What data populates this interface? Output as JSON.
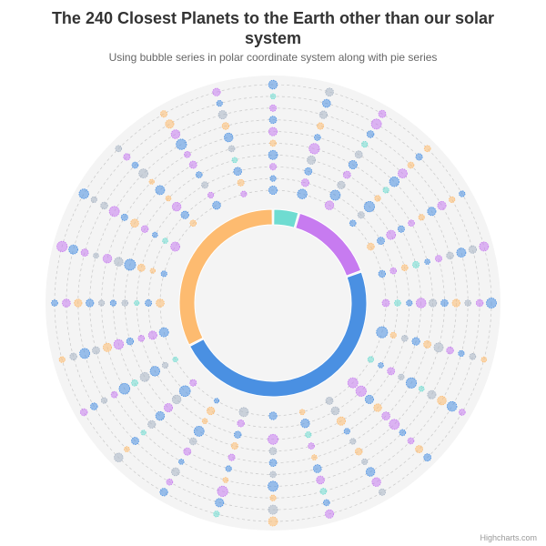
{
  "header": {
    "title": "The 240 Closest Planets to the Earth other than our solar system",
    "subtitle": "Using bubble series in polar coordinate system along with pie series"
  },
  "credits": "Highcharts.com",
  "chart_data": {
    "type": "polar-bubble-with-pie",
    "title": "The 240 Closest Planets to the Earth other than our solar system",
    "subtitle": "Using bubble series in polar coordinate system along with pie series",
    "pane_background": "#f4f4f4",
    "grid": true,
    "angular_categories": 24,
    "rings": 10,
    "palette": [
      "#4a90e2",
      "#c77bf0",
      "#fdbb70",
      "#6fdcd1",
      "#a8b4c4"
    ],
    "pie": {
      "name": "",
      "slices": [
        {
          "value": 4.5,
          "color": "#6fdcd1"
        },
        {
          "value": 15.0,
          "color": "#c77bf0"
        },
        {
          "value": 48.0,
          "color": "#4a90e2"
        },
        {
          "value": 32.5,
          "color": "#fdbb70"
        }
      ]
    },
    "bubble_series": [
      {
        "color": "#4a90e2",
        "points": [
          [
            0,
            0,
            2.2
          ],
          [
            1,
            0,
            2.5
          ],
          [
            3,
            0,
            1.6
          ],
          [
            5,
            0,
            1.8
          ],
          [
            7,
            0,
            2.9
          ],
          [
            12,
            0,
            2.0
          ],
          [
            14,
            0,
            1.3
          ],
          [
            17,
            0,
            2.4
          ],
          [
            19,
            0,
            1.5
          ],
          [
            22,
            0,
            2.1
          ],
          [
            0,
            1,
            1.5
          ],
          [
            2,
            1,
            2.6
          ],
          [
            4,
            1,
            1.9
          ],
          [
            8,
            1,
            1.4
          ],
          [
            11,
            1,
            2.3
          ],
          [
            15,
            1,
            2.8
          ],
          [
            18,
            1,
            1.7
          ],
          [
            21,
            1,
            2.0
          ],
          [
            1,
            2,
            1.9
          ],
          [
            3,
            2,
            2.7
          ],
          [
            6,
            2,
            1.5
          ],
          [
            9,
            2,
            2.2
          ],
          [
            13,
            2,
            1.8
          ],
          [
            16,
            2,
            2.5
          ],
          [
            20,
            2,
            1.4
          ],
          [
            23,
            2,
            2.1
          ],
          [
            0,
            3,
            2.4
          ],
          [
            4,
            3,
            1.7
          ],
          [
            7,
            3,
            2.0
          ],
          [
            10,
            3,
            1.5
          ],
          [
            14,
            3,
            2.6
          ],
          [
            17,
            3,
            1.8
          ],
          [
            19,
            3,
            2.9
          ],
          [
            22,
            3,
            1.6
          ],
          [
            2,
            4,
            2.2
          ],
          [
            5,
            4,
            1.4
          ],
          [
            8,
            4,
            2.7
          ],
          [
            12,
            4,
            1.9
          ],
          [
            15,
            4,
            2.3
          ],
          [
            18,
            4,
            1.5
          ],
          [
            21,
            4,
            2.4
          ],
          [
            1,
            5,
            1.6
          ],
          [
            3,
            5,
            2.5
          ],
          [
            6,
            5,
            1.8
          ],
          [
            11,
            5,
            2.1
          ],
          [
            13,
            5,
            1.5
          ],
          [
            16,
            5,
            2.8
          ],
          [
            20,
            5,
            1.7
          ],
          [
            23,
            5,
            2.3
          ],
          [
            0,
            6,
            1.9
          ],
          [
            4,
            6,
            2.2
          ],
          [
            9,
            6,
            1.6
          ],
          [
            12,
            6,
            2.6
          ],
          [
            14,
            6,
            1.4
          ],
          [
            18,
            6,
            2.0
          ],
          [
            22,
            6,
            2.7
          ],
          [
            2,
            7,
            1.8
          ],
          [
            5,
            7,
            2.4
          ],
          [
            7,
            7,
            1.5
          ],
          [
            10,
            7,
            2.3
          ],
          [
            15,
            7,
            1.9
          ],
          [
            17,
            7,
            2.6
          ],
          [
            21,
            7,
            1.6
          ],
          [
            1,
            8,
            2.1
          ],
          [
            3,
            8,
            1.7
          ],
          [
            8,
            8,
            2.5
          ],
          [
            11,
            8,
            1.6
          ],
          [
            13,
            8,
            2.2
          ],
          [
            16,
            8,
            1.8
          ],
          [
            19,
            8,
            2.4
          ],
          [
            23,
            8,
            1.5
          ],
          [
            0,
            9,
            2.3
          ],
          [
            4,
            9,
            1.5
          ],
          [
            6,
            9,
            2.6
          ],
          [
            9,
            9,
            1.9
          ],
          [
            14,
            9,
            2.0
          ],
          [
            18,
            9,
            1.6
          ],
          [
            20,
            9,
            2.5
          ]
        ]
      },
      {
        "color": "#c77bf0",
        "points": [
          [
            2,
            0,
            2.3
          ],
          [
            6,
            0,
            1.9
          ],
          [
            9,
            0,
            2.6
          ],
          [
            15,
            0,
            1.7
          ],
          [
            20,
            0,
            2.4
          ],
          [
            23,
            0,
            1.5
          ],
          [
            1,
            1,
            2.0
          ],
          [
            5,
            1,
            1.6
          ],
          [
            9,
            1,
            2.7
          ],
          [
            13,
            1,
            1.8
          ],
          [
            17,
            1,
            2.2
          ],
          [
            22,
            1,
            1.5
          ],
          [
            0,
            2,
            1.7
          ],
          [
            4,
            2,
            2.4
          ],
          [
            8,
            2,
            1.9
          ],
          [
            12,
            2,
            2.6
          ],
          [
            17,
            2,
            1.6
          ],
          [
            21,
            2,
            2.3
          ],
          [
            2,
            3,
            1.9
          ],
          [
            6,
            3,
            2.5
          ],
          [
            11,
            3,
            1.6
          ],
          [
            15,
            3,
            2.2
          ],
          [
            20,
            3,
            1.8
          ],
          [
            1,
            4,
            2.7
          ],
          [
            4,
            4,
            1.6
          ],
          [
            9,
            4,
            2.1
          ],
          [
            13,
            4,
            1.7
          ],
          [
            17,
            4,
            2.5
          ],
          [
            22,
            4,
            1.9
          ],
          [
            0,
            5,
            2.2
          ],
          [
            5,
            5,
            1.7
          ],
          [
            9,
            5,
            2.6
          ],
          [
            14,
            5,
            1.9
          ],
          [
            19,
            5,
            2.3
          ],
          [
            22,
            5,
            1.6
          ],
          [
            3,
            6,
            2.4
          ],
          [
            7,
            6,
            1.8
          ],
          [
            11,
            6,
            2.1
          ],
          [
            16,
            6,
            1.6
          ],
          [
            20,
            6,
            2.6
          ],
          [
            0,
            7,
            1.7
          ],
          [
            4,
            7,
            2.2
          ],
          [
            9,
            7,
            1.6
          ],
          [
            13,
            7,
            2.7
          ],
          [
            19,
            7,
            1.9
          ],
          [
            22,
            7,
            2.3
          ],
          [
            2,
            8,
            2.6
          ],
          [
            6,
            8,
            1.8
          ],
          [
            10,
            8,
            2.3
          ],
          [
            14,
            8,
            1.6
          ],
          [
            18,
            8,
            2.1
          ],
          [
            21,
            8,
            1.7
          ],
          [
            2,
            9,
            1.9
          ],
          [
            5,
            9,
            2.4
          ],
          [
            8,
            9,
            1.6
          ],
          [
            11,
            9,
            2.2
          ],
          [
            16,
            9,
            1.8
          ],
          [
            19,
            9,
            2.7
          ],
          [
            23,
            9,
            2.0
          ]
        ]
      },
      {
        "color": "#fdbb70",
        "points": [
          [
            4,
            0,
            1.8
          ],
          [
            11,
            0,
            1.4
          ],
          [
            18,
            0,
            2.1
          ],
          [
            21,
            0,
            1.6
          ],
          [
            7,
            1,
            1.5
          ],
          [
            14,
            1,
            2.0
          ],
          [
            19,
            1,
            1.3
          ],
          [
            23,
            1,
            1.7
          ],
          [
            5,
            2,
            1.6
          ],
          [
            10,
            2,
            2.2
          ],
          [
            14,
            2,
            1.4
          ],
          [
            19,
            2,
            1.9
          ],
          [
            3,
            3,
            1.5
          ],
          [
            9,
            3,
            2.0
          ],
          [
            13,
            3,
            1.7
          ],
          [
            21,
            3,
            1.4
          ],
          [
            0,
            4,
            1.6
          ],
          [
            7,
            4,
            1.9
          ],
          [
            11,
            4,
            1.4
          ],
          [
            20,
            4,
            2.1
          ],
          [
            4,
            5,
            1.5
          ],
          [
            10,
            5,
            1.8
          ],
          [
            17,
            5,
            2.2
          ],
          [
            21,
            5,
            1.3
          ],
          [
            1,
            6,
            1.7
          ],
          [
            6,
            6,
            2.0
          ],
          [
            13,
            6,
            1.4
          ],
          [
            23,
            6,
            1.8
          ],
          [
            3,
            7,
            1.6
          ],
          [
            8,
            7,
            2.3
          ],
          [
            12,
            7,
            1.5
          ],
          [
            18,
            7,
            2.0
          ],
          [
            4,
            8,
            1.5
          ],
          [
            9,
            8,
            1.9
          ],
          [
            15,
            8,
            1.4
          ],
          [
            22,
            8,
            2.2
          ],
          [
            3,
            9,
            1.6
          ],
          [
            7,
            9,
            1.4
          ],
          [
            12,
            9,
            2.4
          ],
          [
            17,
            9,
            1.5
          ],
          [
            22,
            9,
            1.7
          ]
        ]
      },
      {
        "color": "#6fdcd1",
        "points": [
          [
            8,
            0,
            1.5
          ],
          [
            16,
            0,
            1.3
          ],
          [
            6,
            1,
            1.6
          ],
          [
            20,
            1,
            1.4
          ],
          [
            11,
            2,
            1.5
          ],
          [
            18,
            2,
            1.3
          ],
          [
            5,
            3,
            1.7
          ],
          [
            23,
            3,
            1.4
          ],
          [
            3,
            4,
            1.5
          ],
          [
            16,
            4,
            1.6
          ],
          [
            8,
            5,
            1.4
          ],
          [
            2,
            6,
            1.5
          ],
          [
            15,
            6,
            1.3
          ],
          [
            11,
            7,
            1.6
          ],
          [
            0,
            8,
            1.4
          ],
          [
            13,
            9,
            1.5
          ]
        ]
      },
      {
        "color": "#a8b4c4",
        "points": [
          [
            10,
            0,
            1.9
          ],
          [
            13,
            0,
            2.4
          ],
          [
            3,
            1,
            1.7
          ],
          [
            10,
            1,
            2.1
          ],
          [
            16,
            1,
            1.5
          ],
          [
            2,
            2,
            2.0
          ],
          [
            7,
            2,
            1.6
          ],
          [
            15,
            2,
            2.3
          ],
          [
            22,
            2,
            1.7
          ],
          [
            1,
            3,
            2.2
          ],
          [
            8,
            3,
            1.5
          ],
          [
            12,
            3,
            1.9
          ],
          [
            16,
            3,
            2.4
          ],
          [
            18,
            3,
            1.6
          ],
          [
            6,
            4,
            2.0
          ],
          [
            10,
            4,
            1.5
          ],
          [
            14,
            4,
            1.8
          ],
          [
            19,
            4,
            2.3
          ],
          [
            23,
            4,
            1.6
          ],
          [
            2,
            5,
            1.9
          ],
          [
            7,
            5,
            2.4
          ],
          [
            12,
            5,
            1.6
          ],
          [
            15,
            5,
            2.0
          ],
          [
            18,
            5,
            1.5
          ],
          [
            5,
            6,
            1.8
          ],
          [
            8,
            6,
            2.2
          ],
          [
            10,
            6,
            1.5
          ],
          [
            17,
            6,
            1.9
          ],
          [
            19,
            6,
            1.4
          ],
          [
            21,
            6,
            2.4
          ],
          [
            1,
            7,
            2.0
          ],
          [
            6,
            7,
            1.6
          ],
          [
            14,
            7,
            2.1
          ],
          [
            16,
            7,
            1.5
          ],
          [
            20,
            7,
            1.8
          ],
          [
            23,
            7,
            2.2
          ],
          [
            5,
            8,
            2.0
          ],
          [
            7,
            8,
            1.6
          ],
          [
            12,
            8,
            2.4
          ],
          [
            17,
            8,
            1.8
          ],
          [
            20,
            8,
            1.5
          ],
          [
            1,
            9,
            2.1
          ],
          [
            10,
            9,
            1.7
          ],
          [
            15,
            9,
            2.3
          ],
          [
            21,
            9,
            1.6
          ]
        ]
      }
    ]
  }
}
